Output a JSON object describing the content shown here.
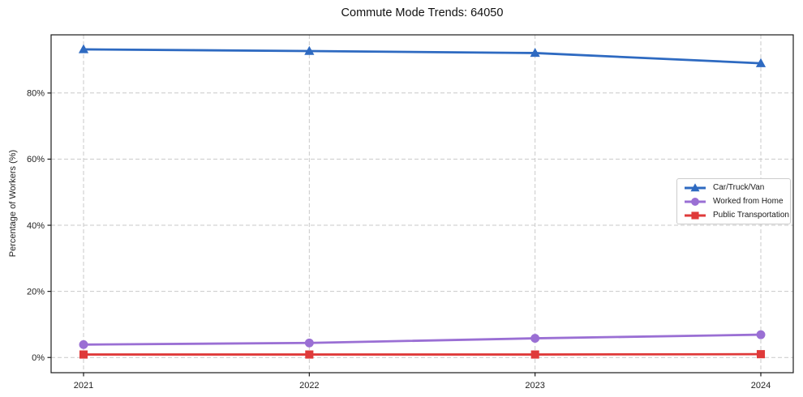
{
  "chart_data": {
    "type": "line",
    "title": "Commute Mode Trends: 64050",
    "xlabel": "",
    "ylabel": "Percentage of Workers (%)",
    "categories": [
      "2021",
      "2022",
      "2023",
      "2024"
    ],
    "y_ticks": [
      0,
      20,
      40,
      60,
      80
    ],
    "y_tick_labels": [
      "0%",
      "20%",
      "40%",
      "60%",
      "80%"
    ],
    "ylim": [
      -4.6,
      97.6
    ],
    "grid": {
      "visible": true,
      "style": "dashed",
      "color": "#c9c9c9"
    },
    "axes": {
      "frame_color": "#1a1a1a",
      "tick_text_color": "#1f1f1f"
    },
    "legend": {
      "position": "center-right",
      "border_color": "#cccccc",
      "background": "#ffffff"
    },
    "series": [
      {
        "name": "Car/Truck/Van",
        "color": "#2e6ac1",
        "marker": "triangle",
        "values": [
          93.2,
          92.7,
          92.1,
          89.0
        ]
      },
      {
        "name": "Worked from Home",
        "color": "#9a6fd4",
        "marker": "circle",
        "values": [
          3.9,
          4.4,
          5.8,
          6.9
        ]
      },
      {
        "name": "Public Transportation",
        "color": "#df3a3a",
        "marker": "square",
        "values": [
          0.9,
          0.9,
          0.9,
          1.0
        ]
      }
    ]
  }
}
